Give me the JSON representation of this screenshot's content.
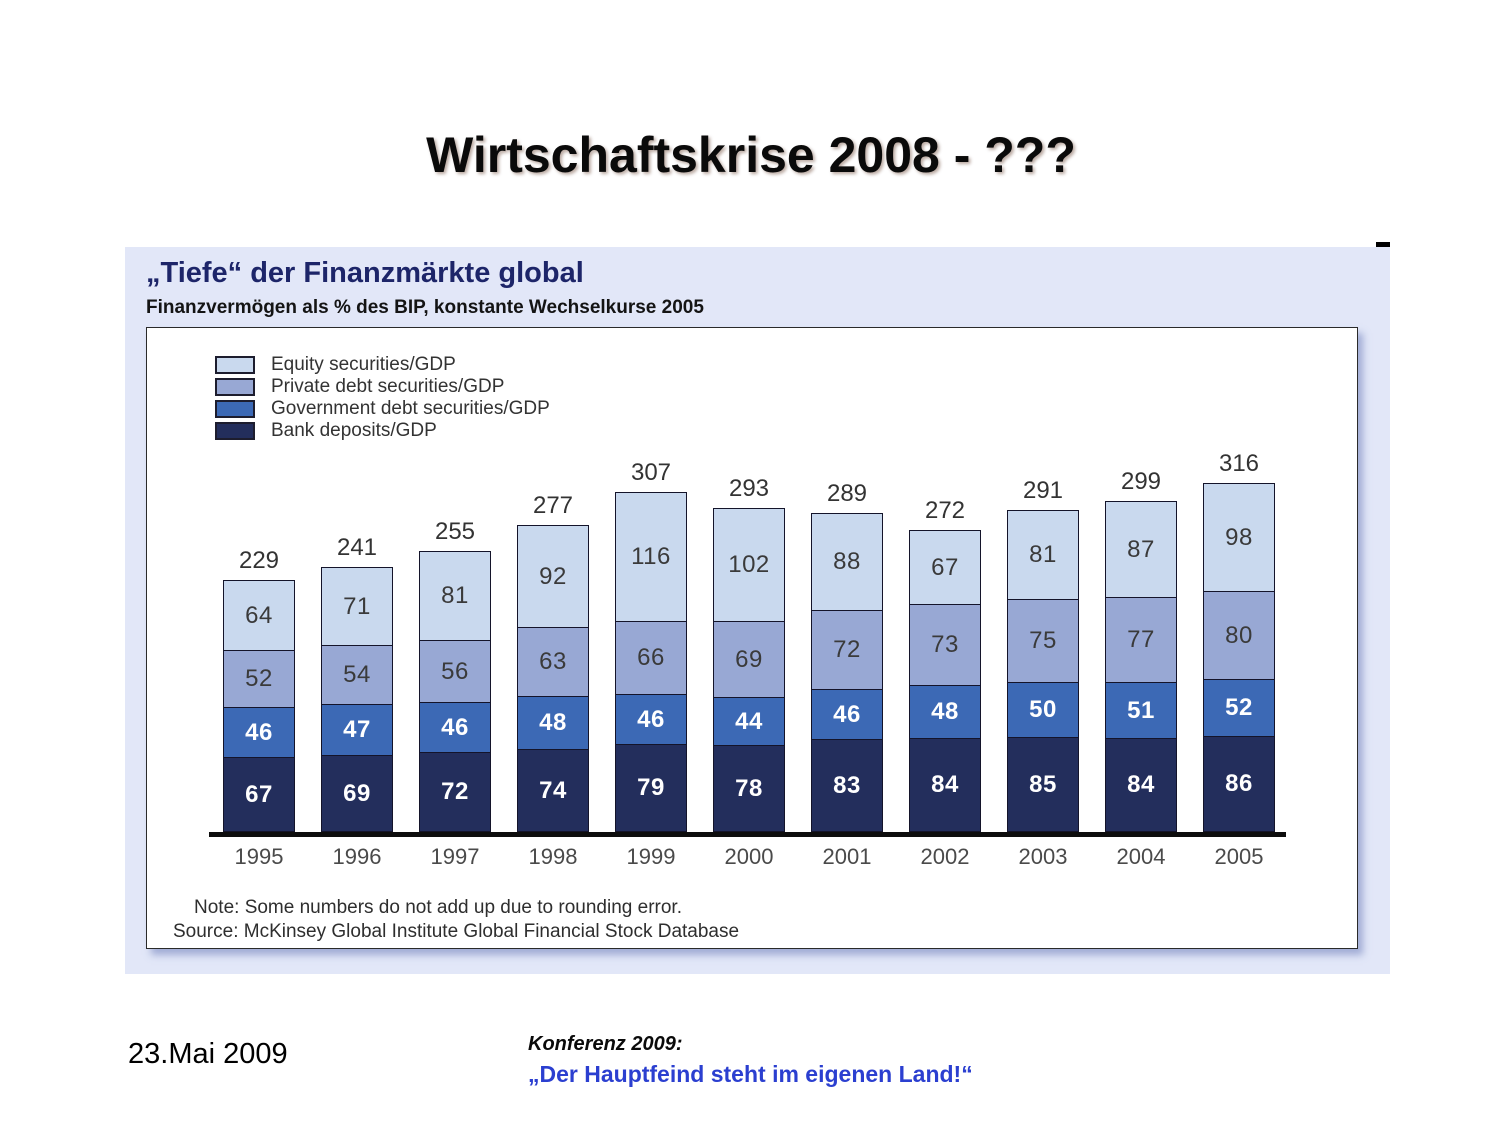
{
  "slide": {
    "title": "Wirtschaftskrise 2008 - ???",
    "footer_date": "23.Mai 2009",
    "footer_conference_label": "Konferenz 2009:",
    "footer_conference_quote": "„Der Hauptfeind steht im eigenen Land!“"
  },
  "chart_panel": {
    "title": "„Tiefe“ der Finanzmärkte global",
    "subtitle": "Finanzvermögen als % des BIP, konstante Wechselkurse 2005",
    "note": "Note: Some numbers do not add up due to rounding error.",
    "source": "Source: McKinsey Global Institute Global Financial Stock Database"
  },
  "chart_data": {
    "type": "bar",
    "stacked": true,
    "title": "„Tiefe“ der Finanzmärkte global",
    "subtitle": "Finanzvermögen als % des BIP, konstante Wechselkurse 2005",
    "xlabel": "",
    "ylabel": "Finanzvermögen als % des BIP",
    "grid": false,
    "legend_position": "top-left",
    "categories": [
      "1995",
      "1996",
      "1997",
      "1998",
      "1999",
      "2000",
      "2001",
      "2002",
      "2003",
      "2004",
      "2005"
    ],
    "series": [
      {
        "name": "Bank deposits/GDP",
        "color": "#232e5c",
        "label_style": "light",
        "values": [
          67,
          69,
          72,
          74,
          79,
          78,
          83,
          84,
          85,
          84,
          86
        ]
      },
      {
        "name": "Government debt securities/GDP",
        "color": "#3c69b5",
        "label_style": "light",
        "values": [
          46,
          47,
          46,
          48,
          46,
          44,
          46,
          48,
          50,
          51,
          52
        ]
      },
      {
        "name": "Private debt securities/GDP",
        "color": "#98a8d4",
        "label_style": "dark",
        "values": [
          52,
          54,
          56,
          63,
          66,
          69,
          72,
          73,
          75,
          77,
          80
        ]
      },
      {
        "name": "Equity securities/GDP",
        "color": "#c9d9ee",
        "label_style": "dark",
        "values": [
          64,
          71,
          81,
          92,
          116,
          102,
          88,
          67,
          81,
          87,
          98
        ]
      }
    ],
    "totals": [
      229,
      241,
      255,
      277,
      307,
      293,
      289,
      272,
      291,
      299,
      316
    ]
  },
  "colors": {
    "panel_background": "#e2e7f8",
    "banner_orange": "#c84a20",
    "chart_title_navy": "#1d2569",
    "footer_quote_blue": "#2b3fd0"
  }
}
